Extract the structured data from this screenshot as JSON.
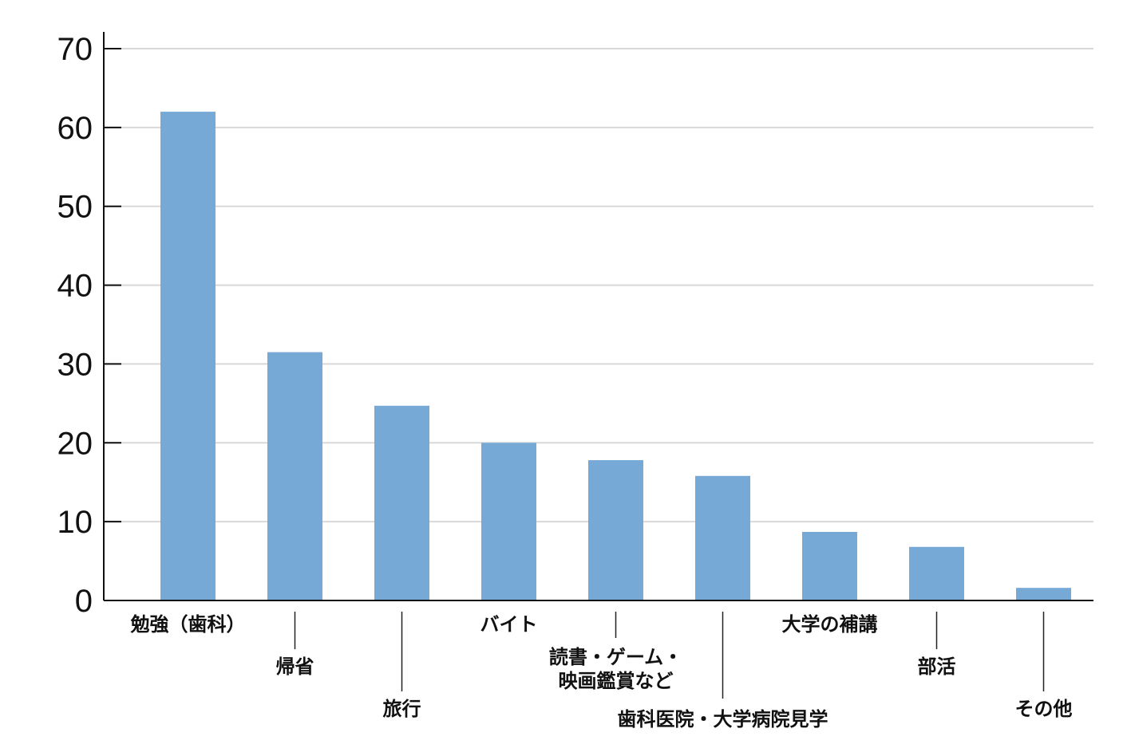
{
  "chart_data": {
    "type": "bar",
    "title": "",
    "xlabel": "",
    "ylabel": "",
    "ylim": [
      0,
      70
    ],
    "yticks": [
      0,
      10,
      20,
      30,
      40,
      50,
      60,
      70
    ],
    "grid": true,
    "bar_color": "#76a9d6",
    "grid_color": "#d8d8d8",
    "axis_color": "#111111",
    "categories": [
      {
        "lines": [
          "勉強（歯科）"
        ]
      },
      {
        "lines": [
          "帰省"
        ]
      },
      {
        "lines": [
          "旅行"
        ]
      },
      {
        "lines": [
          "バイト"
        ]
      },
      {
        "lines": [
          "読書・ゲーム・",
          "映画鑑賞など"
        ]
      },
      {
        "lines": [
          "歯科医院・大学病院見学"
        ]
      },
      {
        "lines": [
          "大学の補講"
        ]
      },
      {
        "lines": [
          "部活"
        ]
      },
      {
        "lines": [
          "その他"
        ]
      }
    ],
    "values": [
      62,
      31.5,
      24.7,
      20,
      17.8,
      15.8,
      8.7,
      6.8,
      1.6
    ]
  }
}
